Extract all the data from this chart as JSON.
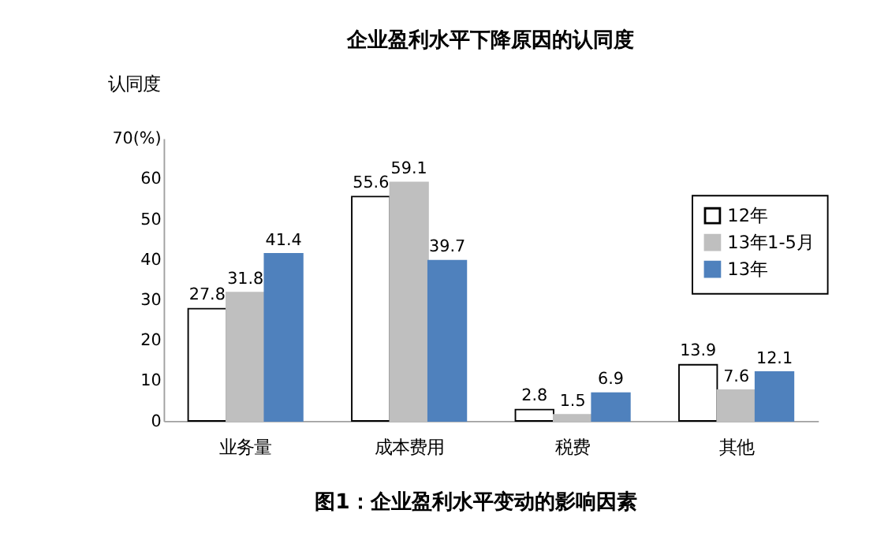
{
  "chart_data": {
    "type": "bar",
    "title": "企业盈利水平下降原因的认同度",
    "ylabel": "认同度",
    "categories": [
      "业务量",
      "成本费用",
      "税费",
      "其他"
    ],
    "series": [
      {
        "name": "12年",
        "color": "#ffffff",
        "values": [
          27.8,
          55.6,
          2.8,
          13.9
        ]
      },
      {
        "name": "13年1-5月",
        "color": "#bfbfbf",
        "values": [
          31.8,
          59.1,
          1.5,
          7.6
        ]
      },
      {
        "name": "13年",
        "color": "#4f81bd",
        "values": [
          41.4,
          39.7,
          6.9,
          12.1
        ]
      }
    ],
    "ylim": [
      0,
      70
    ],
    "yticks": [
      0,
      10,
      20,
      30,
      40,
      50,
      60,
      {
        "value": 70,
        "label": "70(%)"
      }
    ],
    "data_labels": true,
    "grid": false,
    "legend": "top right",
    "annotations": [
      "图1：企业盈利水平变动的影响因素"
    ]
  }
}
